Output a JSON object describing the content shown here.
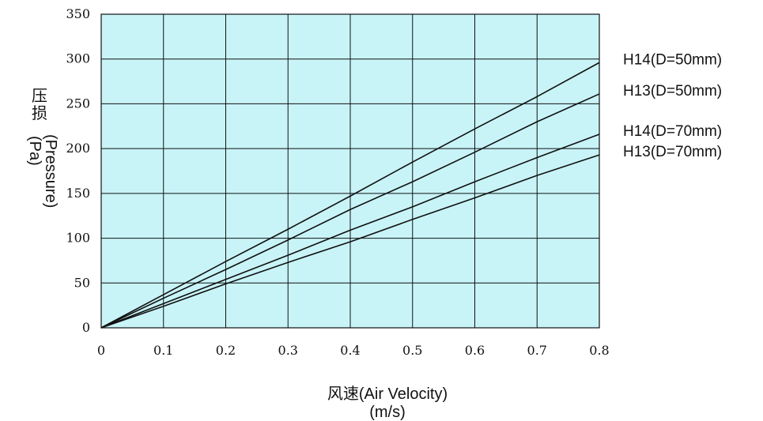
{
  "chart_data": {
    "type": "line",
    "title": "",
    "xlabel": "风速(Air Velocity)",
    "xlabel_unit": "(m/s)",
    "ylabel": "压损(Pressure)",
    "ylabel_unit": "(Pa)",
    "xlim": [
      0,
      0.8
    ],
    "ylim": [
      0,
      350
    ],
    "x_ticks": [
      0,
      0.1,
      0.2,
      0.3,
      0.4,
      0.5,
      0.6,
      0.7,
      0.8
    ],
    "x_tick_labels": [
      "0",
      "0.1",
      "0.2",
      "0.3",
      "0.4",
      "0.5",
      "0.6",
      "0.7",
      "0.8"
    ],
    "y_ticks": [
      0,
      50,
      100,
      150,
      200,
      250,
      300,
      350
    ],
    "y_tick_labels": [
      "0",
      "50",
      "100",
      "150",
      "200",
      "250",
      "300",
      "350"
    ],
    "grid": true,
    "plot_background": "#c8f4f8",
    "line_color": "#111111",
    "legend_placement": "right",
    "x": [
      0,
      0.1,
      0.2,
      0.3,
      0.4,
      0.5,
      0.6,
      0.7,
      0.8
    ],
    "series": [
      {
        "name": "H14(D=50mm)",
        "values": [
          0,
          37,
          74,
          110,
          147,
          185,
          222,
          258,
          296
        ]
      },
      {
        "name": "H13(D=50mm)",
        "values": [
          0,
          33,
          65,
          98,
          132,
          163,
          196,
          230,
          261
        ]
      },
      {
        "name": "H14(D=70mm)",
        "values": [
          0,
          27,
          54,
          81,
          109,
          135,
          163,
          190,
          216
        ]
      },
      {
        "name": "H13(D=70mm)",
        "values": [
          0,
          24,
          49,
          73,
          96,
          121,
          145,
          170,
          193
        ]
      }
    ]
  }
}
